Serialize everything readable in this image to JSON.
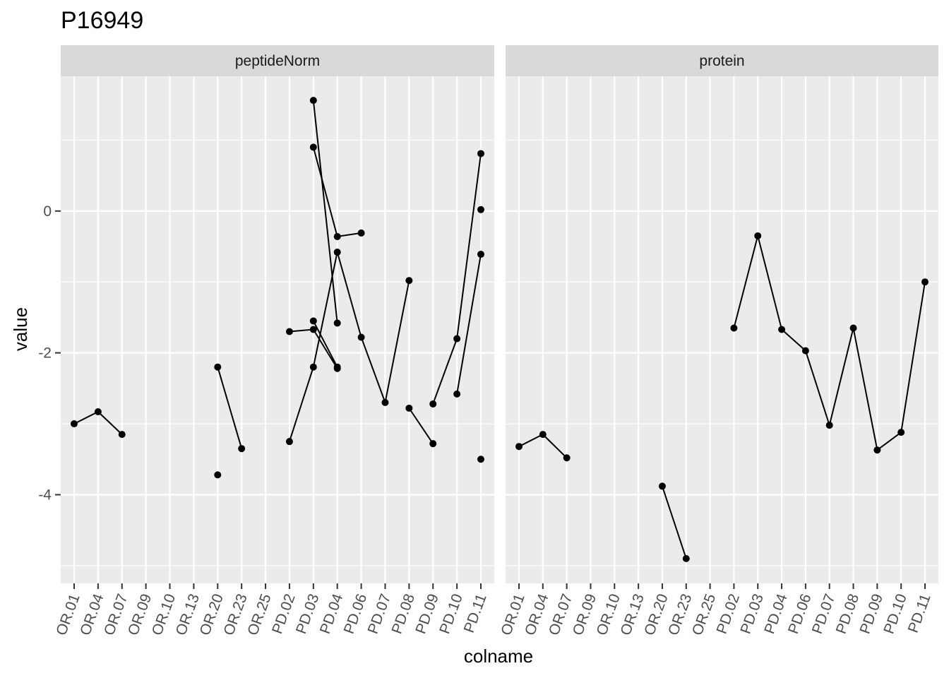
{
  "chart_data": {
    "type": "line",
    "title": "P16949",
    "xlabel": "colname",
    "ylabel": "value",
    "categories": [
      "OR.01",
      "OR.04",
      "OR.07",
      "OR.09",
      "OR.10",
      "OR.13",
      "OR.20",
      "OR.23",
      "OR.25",
      "PD.02",
      "PD.03",
      "PD.04",
      "PD.06",
      "PD.07",
      "PD.08",
      "PD.09",
      "PD.10",
      "PD.11"
    ],
    "ylim": [
      -5.25,
      1.9
    ],
    "yticks": [
      -4,
      -2,
      0
    ],
    "ytick_labels": [
      "-4",
      "-2",
      "0"
    ],
    "grid": true,
    "colors": {
      "panel_bg": "#EBEBEB",
      "strip_bg": "#D9D9D9",
      "grid": "#FFFFFF",
      "mark": "#000000",
      "tick": "#333333"
    },
    "panels": [
      {
        "name": "peptideNorm",
        "series": [
          {
            "points": [
              [
                "OR.01",
                -3.0
              ],
              [
                "OR.04",
                -2.83
              ],
              [
                "OR.07",
                -3.15
              ]
            ]
          },
          {
            "points": [
              [
                "OR.20",
                -3.72
              ]
            ]
          },
          {
            "points": [
              [
                "OR.20",
                -2.2
              ],
              [
                "OR.23",
                -3.35
              ]
            ]
          },
          {
            "points": [
              [
                "PD.02",
                -1.7
              ],
              [
                "PD.03",
                -1.67
              ],
              [
                "PD.04",
                -2.22
              ]
            ]
          },
          {
            "points": [
              [
                "PD.02",
                -3.25
              ],
              [
                "PD.03",
                -2.2
              ],
              [
                "PD.04",
                -0.58
              ],
              [
                "PD.06",
                -1.78
              ],
              [
                "PD.07",
                -2.7
              ],
              [
                "PD.08",
                -0.98
              ]
            ]
          },
          {
            "points": [
              [
                "PD.03",
                1.56
              ],
              [
                "PD.04",
                -1.58
              ]
            ]
          },
          {
            "points": [
              [
                "PD.03",
                -1.55
              ],
              [
                "PD.04",
                -2.2
              ]
            ]
          },
          {
            "points": [
              [
                "PD.03",
                0.9
              ],
              [
                "PD.04",
                -0.36
              ],
              [
                "PD.06",
                -0.31
              ]
            ]
          },
          {
            "points": [
              [
                "PD.08",
                -2.78
              ],
              [
                "PD.09",
                -3.28
              ]
            ]
          },
          {
            "points": [
              [
                "PD.09",
                -2.72
              ],
              [
                "PD.10",
                -1.8
              ],
              [
                "PD.11",
                0.81
              ]
            ]
          },
          {
            "points": [
              [
                "PD.10",
                -2.58
              ],
              [
                "PD.11",
                -0.61
              ]
            ]
          },
          {
            "points": [
              [
                "PD.11",
                0.02
              ]
            ]
          },
          {
            "points": [
              [
                "PD.11",
                -3.5
              ]
            ]
          }
        ]
      },
      {
        "name": "protein",
        "series": [
          {
            "points": [
              [
                "OR.01",
                -3.32
              ],
              [
                "OR.04",
                -3.15
              ],
              [
                "OR.07",
                -3.48
              ]
            ]
          },
          {
            "points": [
              [
                "OR.20",
                -3.88
              ],
              [
                "OR.23",
                -4.9
              ]
            ]
          },
          {
            "points": [
              [
                "PD.02",
                -1.65
              ],
              [
                "PD.03",
                -0.35
              ],
              [
                "PD.04",
                -1.67
              ],
              [
                "PD.06",
                -1.97
              ],
              [
                "PD.07",
                -3.02
              ],
              [
                "PD.08",
                -1.65
              ],
              [
                "PD.09",
                -3.37
              ],
              [
                "PD.10",
                -3.12
              ],
              [
                "PD.11",
                -1.0
              ]
            ]
          }
        ]
      }
    ]
  }
}
